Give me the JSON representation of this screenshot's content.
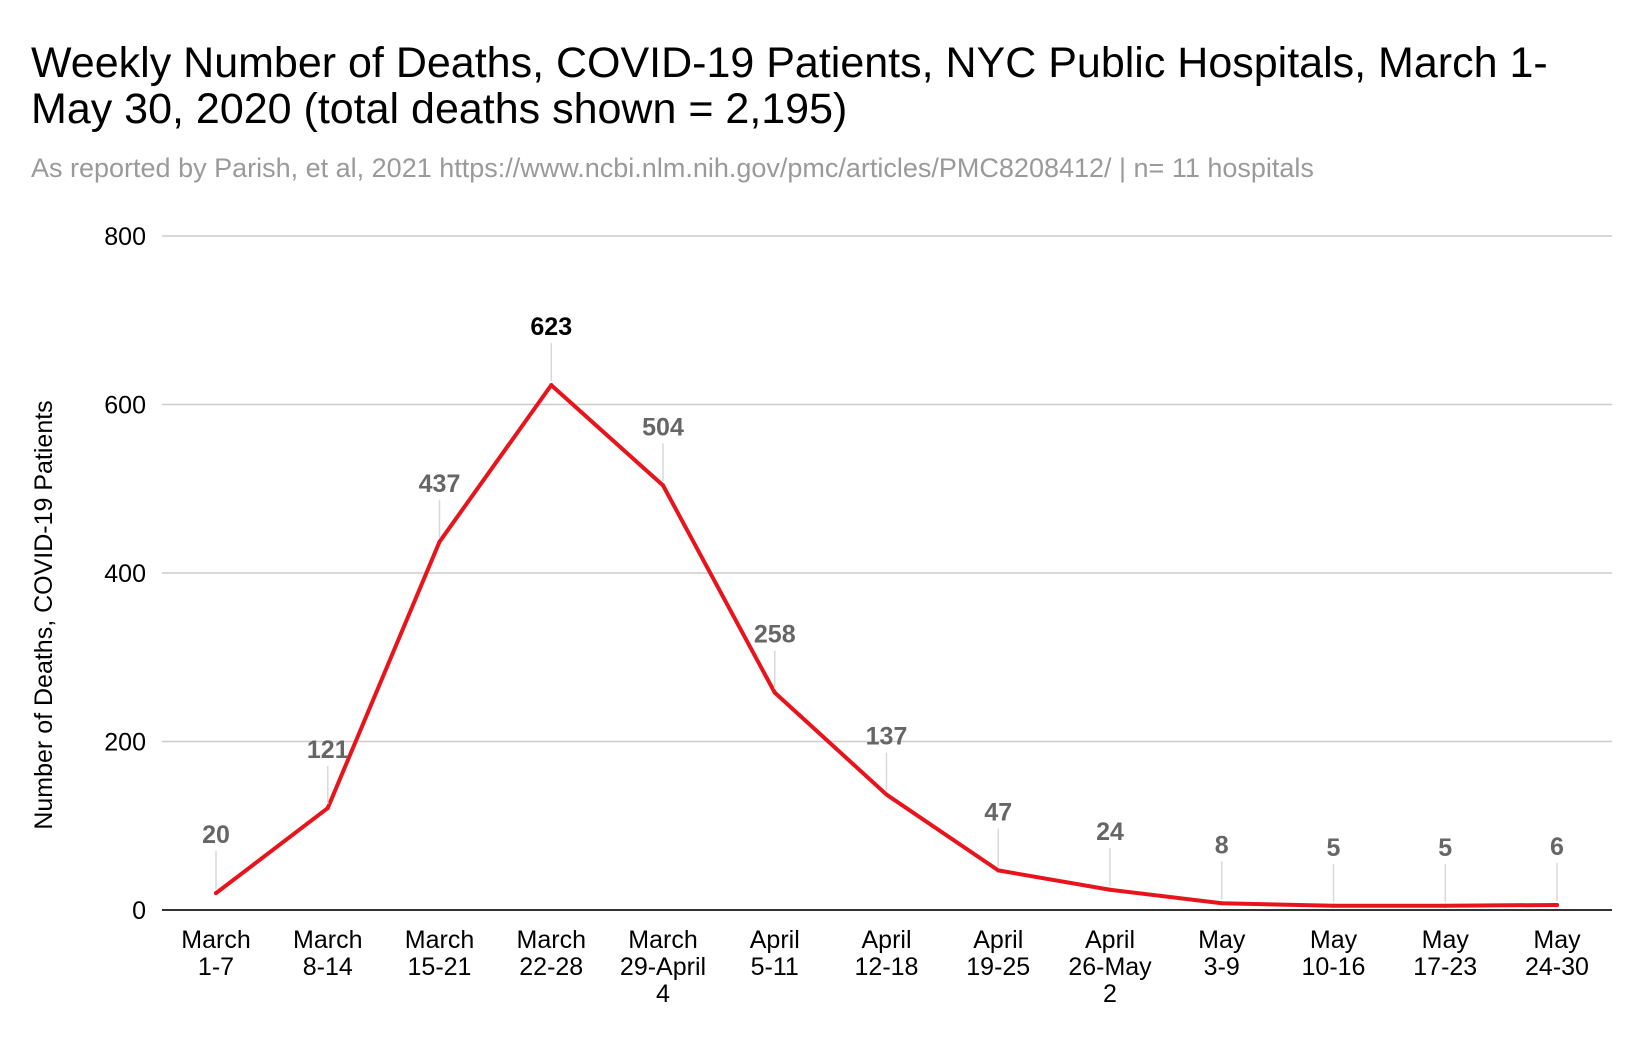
{
  "chart_data": {
    "type": "line",
    "title": "Weekly Number of Deaths, COVID-19 Patients, NYC Public Hospitals, March 1- May 30, 2020 (total deaths shown = 2,195)",
    "subtitle": "As reported by Parish, et al, 2021 https://www.ncbi.nlm.nih.gov/pmc/articles/PMC8208412/ | n= 11 hospitals",
    "xlabel": "",
    "ylabel": "Number of Deaths, COVID-19 Patients",
    "ylim": [
      0,
      800
    ],
    "yticks": [
      0,
      200,
      400,
      600,
      800
    ],
    "grid": true,
    "categories": [
      [
        "March",
        "1-7"
      ],
      [
        "March",
        "8-14"
      ],
      [
        "March",
        "15-21"
      ],
      [
        "March",
        "22-28"
      ],
      [
        "March",
        "29-April",
        "4"
      ],
      [
        "April",
        "5-11"
      ],
      [
        "April",
        "12-18"
      ],
      [
        "April",
        "19-25"
      ],
      [
        "April",
        "26-May",
        "2"
      ],
      [
        "May",
        "3-9"
      ],
      [
        "May",
        "10-16"
      ],
      [
        "May",
        "17-23"
      ],
      [
        "May",
        "24-30"
      ]
    ],
    "series": [
      {
        "name": "Number of Deaths, COVID-19 Patients",
        "color": "#e8141b",
        "values": [
          20,
          121,
          437,
          623,
          504,
          258,
          137,
          47,
          24,
          8,
          5,
          5,
          6
        ]
      }
    ],
    "data_labels": [
      "20",
      "121",
      "437",
      "623",
      "504",
      "258",
      "137",
      "47",
      "24",
      "8",
      "5",
      "5",
      "6"
    ],
    "highlight_index": 3,
    "label_color": "#666666",
    "highlight_label_color": "#000000",
    "grid_color": "#cccccc",
    "axis_color": "#333333"
  }
}
